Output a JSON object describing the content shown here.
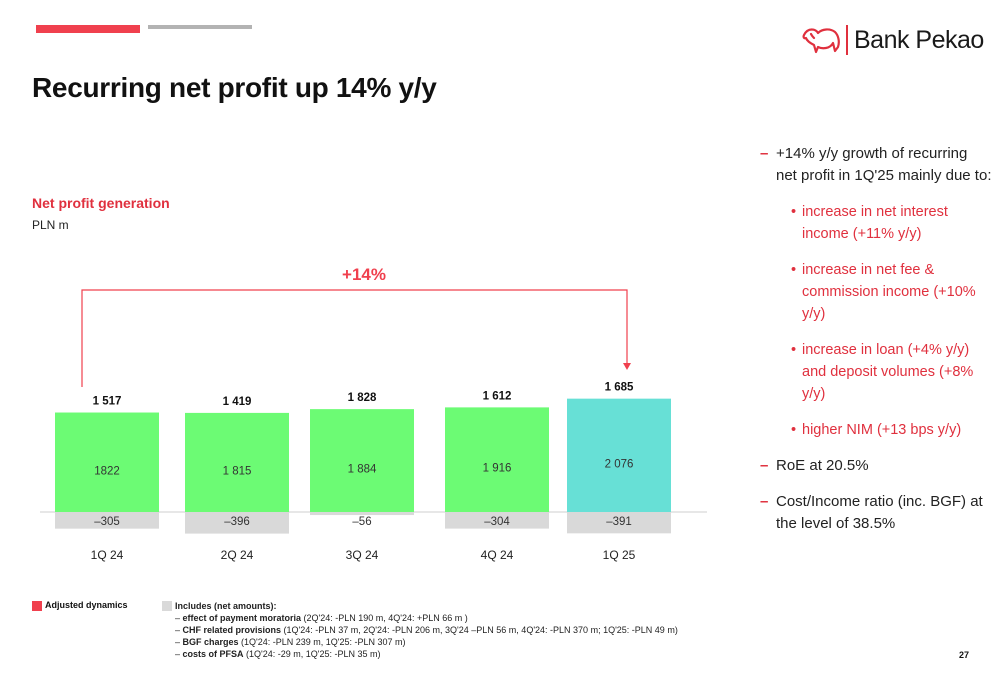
{
  "brand": {
    "name": "Bank Pekao",
    "color": "#e0303e"
  },
  "title": "Recurring net profit up 14% y/y",
  "subtitle": "Net profit generation",
  "unit": "PLN m",
  "page_number": "27",
  "legend": {
    "adjusted_label": "Adjusted dynamics",
    "includes_title": "Includes (net amounts):",
    "items": [
      {
        "bold": "effect of payment moratoria",
        "text": " (2Q'24: -PLN 190 m, 4Q'24: +PLN 66 m )"
      },
      {
        "bold": "CHF related provisions",
        "text": " (1Q'24: -PLN 37 m, 2Q'24: -PLN 206 m, 3Q'24 –PLN 56 m, 4Q'24: -PLN 370 m; 1Q'25: -PLN 49 m)"
      },
      {
        "bold": "BGF charges",
        "text": " (1Q'24: -PLN 239 m, 1Q'25: -PLN 307 m)"
      },
      {
        "bold": "costs of PFSA",
        "text": " (1Q'24: -29 m, 1Q'25: -PLN 35 m)"
      }
    ]
  },
  "bullets": {
    "main": "+14% y/y growth of recurring net profit in 1Q'25 mainly due to:",
    "subs": [
      "increase in net interest income (+11% y/y)",
      "increase in net fee & commission income (+10% y/y)",
      "increase in loan (+4% y/y) and deposit volumes (+8% y/y)",
      "higher NIM (+13 bps y/y)"
    ],
    "roe": "RoE at 20.5%",
    "ci": "Cost/Income ratio (inc. BGF) at the level of 38.5%"
  },
  "chart_data": {
    "type": "bar",
    "stacked": true,
    "title": "Net profit generation",
    "ylabel": "PLN m",
    "categories": [
      "1Q 24",
      "2Q 24",
      "3Q 24",
      "4Q 24",
      "1Q 25"
    ],
    "totals": [
      "1 517",
      "1 419",
      "1 828",
      "1 612",
      "1 685"
    ],
    "series": [
      {
        "values": [
          1822,
          1815,
          1884,
          1916,
          2076
        ],
        "labels": [
          "1822",
          "1 815",
          "1 884",
          "1 916",
          "2 076"
        ]
      },
      {
        "values": [
          -305,
          -396,
          -56,
          -304,
          -391
        ],
        "labels": [
          "-305",
          "-396",
          "-56",
          "-304",
          "-391"
        ]
      }
    ],
    "bar_colors": [
      "#6cfb74",
      "#6cfb74",
      "#6cfb74",
      "#6cfb74",
      "#67e0d6"
    ],
    "negative_color": "#d9d9d9",
    "dynamics_label": "+14%",
    "dynamics_color": "#f0404e"
  }
}
